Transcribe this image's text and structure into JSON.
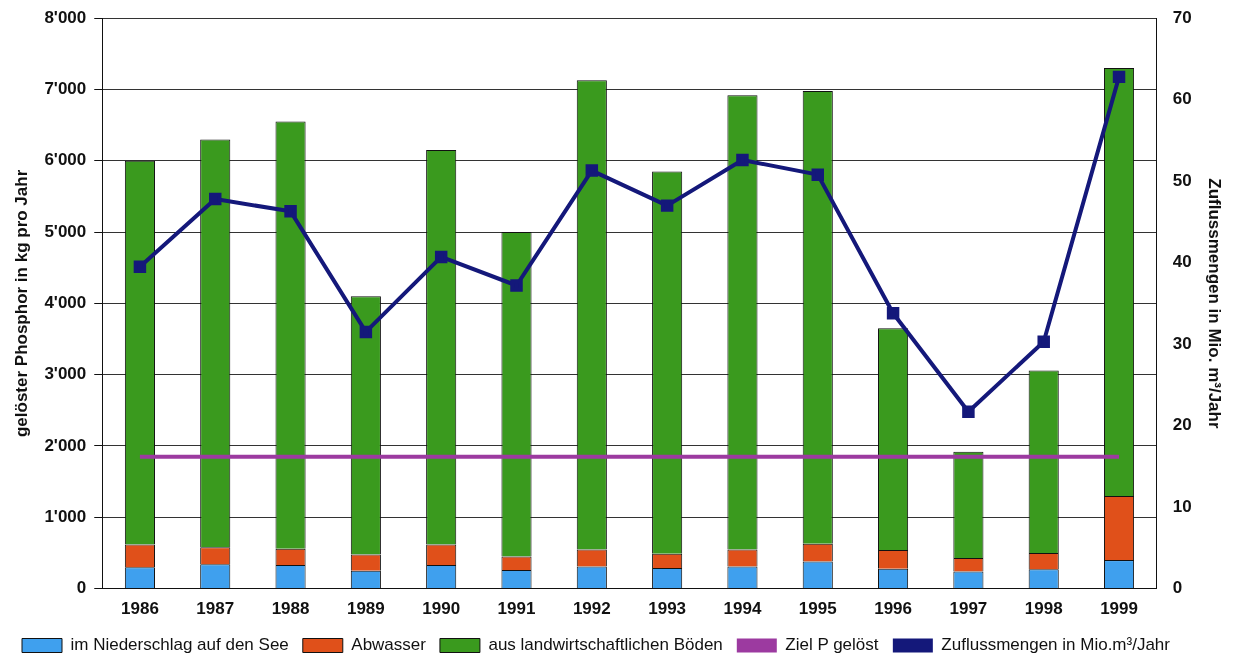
{
  "chart_data": {
    "type": "bar",
    "stacked": true,
    "ylabel": "gelöster Phosphor in kg pro Jahr",
    "y2label": "Zuflussmengen in Mio. m³/Jahr",
    "categories": [
      "1986",
      "1987",
      "1988",
      "1989",
      "1990",
      "1991",
      "1992",
      "1993",
      "1994",
      "1995",
      "1996",
      "1997",
      "1998",
      "1999"
    ],
    "series": [
      {
        "name": "im Niederschlag auf den See",
        "color": "#3fa0ee",
        "values": [
          300,
          340,
          330,
          250,
          330,
          260,
          310,
          290,
          310,
          380,
          280,
          240,
          270,
          400
        ]
      },
      {
        "name": "Abwasser",
        "color": "#e0501a",
        "values": [
          320,
          240,
          230,
          230,
          290,
          190,
          240,
          200,
          240,
          250,
          260,
          190,
          230,
          900
        ]
      },
      {
        "name": "aus landwirtschaftlichen Böden",
        "color": "#3a9a1e",
        "values": [
          5380,
          5720,
          5990,
          3620,
          5530,
          4550,
          6580,
          5360,
          6370,
          6350,
          3110,
          1490,
          2560,
          6000
        ]
      },
      {
        "name": "Ziel P gelöst",
        "type": "line",
        "color": "#9c3aa0",
        "marker": "none",
        "values": [
          1850,
          1850,
          1850,
          1850,
          1850,
          1850,
          1850,
          1850,
          1850,
          1850,
          1850,
          1850,
          1850,
          1850
        ]
      },
      {
        "name": "Zuflussmengen in Mio.m³/Jahr",
        "type": "line",
        "axis": "y2",
        "color": "#14187a",
        "marker": "square",
        "values": [
          39.5,
          47.8,
          46.3,
          31.5,
          40.7,
          37.2,
          51.3,
          47,
          52.6,
          50.8,
          33.8,
          21.7,
          30.3,
          62.8
        ]
      }
    ],
    "ylim": [
      0,
      8000
    ],
    "yticks": [
      0,
      {
        "value": 1000,
        "label": "1'000"
      },
      {
        "value": 2000,
        "label": "2'000"
      },
      {
        "value": 3000,
        "label": "3'000"
      },
      {
        "value": 4000,
        "label": "4'000"
      },
      {
        "value": 5000,
        "label": "5'000"
      },
      {
        "value": 6000,
        "label": "6'000"
      },
      {
        "value": 7000,
        "label": "7'000"
      },
      {
        "value": 8000,
        "label": "8'000"
      }
    ],
    "y2lim": [
      0,
      70
    ],
    "y2ticks": [
      0,
      10,
      20,
      30,
      40,
      50,
      60,
      70
    ],
    "grid": "y",
    "legend": "bottom"
  }
}
